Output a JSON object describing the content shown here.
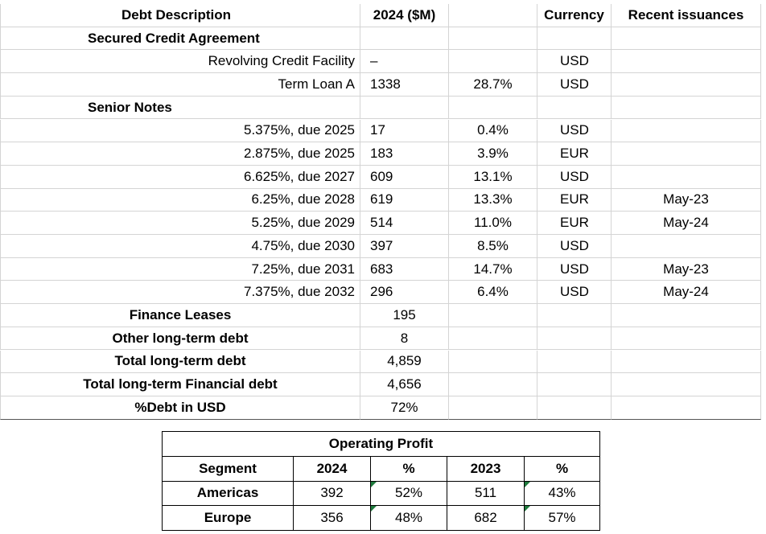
{
  "debt_table": {
    "headers": [
      "Debt Description",
      "2024 ($M)",
      "",
      "Currency",
      "Recent issuances"
    ],
    "rows": [
      {
        "type": "sec",
        "desc": "Secured Credit Agreement",
        "amount": "",
        "pct": "",
        "currency": "",
        "issuance": ""
      },
      {
        "type": "sub",
        "desc": "Revolving Credit Facility",
        "amount": "–",
        "pct": "",
        "currency": "USD",
        "issuance": ""
      },
      {
        "type": "sub",
        "desc": "Term Loan A",
        "amount": "1338",
        "pct": "28.7%",
        "currency": "USD",
        "issuance": ""
      },
      {
        "type": "sec",
        "desc": "Senior Notes",
        "amount": "",
        "pct": "",
        "currency": "",
        "issuance": ""
      },
      {
        "type": "sub",
        "desc": "5.375%, due 2025",
        "amount": "17",
        "pct": "0.4%",
        "currency": "USD",
        "issuance": ""
      },
      {
        "type": "sub",
        "desc": "2.875%, due 2025",
        "amount": "183",
        "pct": "3.9%",
        "currency": "EUR",
        "issuance": ""
      },
      {
        "type": "sub",
        "desc": "6.625%, due 2027",
        "amount": "609",
        "pct": "13.1%",
        "currency": "USD",
        "issuance": ""
      },
      {
        "type": "sub",
        "desc": "6.25%, due 2028",
        "amount": "619",
        "pct": "13.3%",
        "currency": "EUR",
        "issuance": "May-23"
      },
      {
        "type": "sub",
        "desc": "5.25%, due 2029",
        "amount": "514",
        "pct": "11.0%",
        "currency": "EUR",
        "issuance": "May-24"
      },
      {
        "type": "sub",
        "desc": "4.75%, due 2030",
        "amount": "397",
        "pct": "8.5%",
        "currency": "USD",
        "issuance": ""
      },
      {
        "type": "sub",
        "desc": "7.25%, due 2031",
        "amount": "683",
        "pct": "14.7%",
        "currency": "USD",
        "issuance": "May-23"
      },
      {
        "type": "sub",
        "desc": "7.375%, due 2032",
        "amount": "296",
        "pct": "6.4%",
        "currency": "USD",
        "issuance": "May-24"
      },
      {
        "type": "tot",
        "desc": "Finance Leases",
        "amount": "195",
        "pct": "",
        "currency": "",
        "issuance": ""
      },
      {
        "type": "tot",
        "desc": "Other long-term debt",
        "amount": "8",
        "pct": "",
        "currency": "",
        "issuance": ""
      },
      {
        "type": "tot",
        "desc": "Total long-term debt",
        "amount": "4,859",
        "pct": "",
        "currency": "",
        "issuance": ""
      },
      {
        "type": "tot",
        "desc": "Total long-term  Financial debt",
        "amount": "4,656",
        "pct": "",
        "currency": "",
        "issuance": ""
      },
      {
        "type": "tot",
        "desc": "%Debt in USD",
        "amount": "72%",
        "pct": "",
        "currency": "",
        "issuance": ""
      }
    ]
  },
  "operating_profit": {
    "title": "Operating Profit",
    "headers": [
      "Segment",
      "2024",
      "%",
      "2023",
      "%"
    ],
    "rows": [
      {
        "segment": "Americas",
        "v2024": "392",
        "p2024": "52%",
        "v2023": "511",
        "p2023": "43%"
      },
      {
        "segment": "Europe",
        "v2024": "356",
        "p2024": "48%",
        "v2023": "682",
        "p2023": "57%"
      }
    ]
  },
  "colors": {
    "grid": "#d4d4d4",
    "indicator": "#1e7a3c"
  }
}
